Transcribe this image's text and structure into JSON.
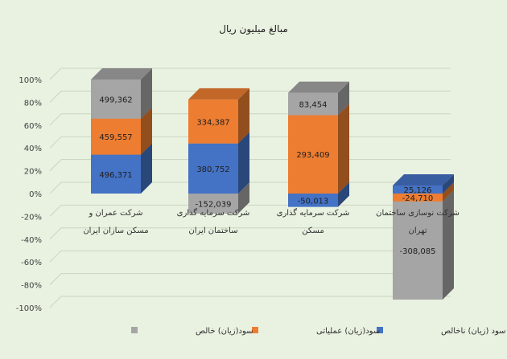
{
  "chart_data": {
    "type": "bar",
    "stacked": "percent",
    "three_d": true,
    "title": "مبالغ   میلیون ریال",
    "ylim": [
      -100,
      100
    ],
    "y_ticks": [
      "100%",
      "80%",
      "60%",
      "40%",
      "20%",
      "0%",
      "-20%",
      "-40%",
      "-60%",
      "-80%",
      "-100%"
    ],
    "y_tick_values": [
      100,
      80,
      60,
      40,
      20,
      0,
      -20,
      -40,
      -60,
      -80,
      -100
    ],
    "grid": true,
    "legend_position": "bottom",
    "categories": [
      {
        "line1": "شرکت عمران و",
        "line2": "مسکن  سازان ایران"
      },
      {
        "line1": "شرکت سرمایه گذاری",
        "line2": "ساختمان ایران"
      },
      {
        "line1": "شرکت سرمایه گذاری",
        "line2": "مسکن"
      },
      {
        "line1": "شرکت نوسازی ساختمان",
        "line2": "تهران"
      }
    ],
    "series": [
      {
        "name": "سود (زیان) ناخالص",
        "color": "#4472c4",
        "values": [
          496371,
          380752,
          -50013,
          25126
        ],
        "labels": [
          "496,371",
          "380,752",
          "-50,013",
          "25,126"
        ]
      },
      {
        "name": "سود(زیان) عملیاتی",
        "color": "#ed7d31",
        "values": [
          459557,
          334387,
          293409,
          -24710
        ],
        "labels": [
          "459,557",
          "334,387",
          "293,409",
          "-24,710"
        ]
      },
      {
        "name": "سود(زیان) خالص",
        "color": "#a5a5a5",
        "values": [
          499362,
          -152039,
          83454,
          -308085
        ],
        "labels": [
          "499,362",
          "-152,039",
          "83,454",
          "-308,085"
        ]
      }
    ]
  }
}
